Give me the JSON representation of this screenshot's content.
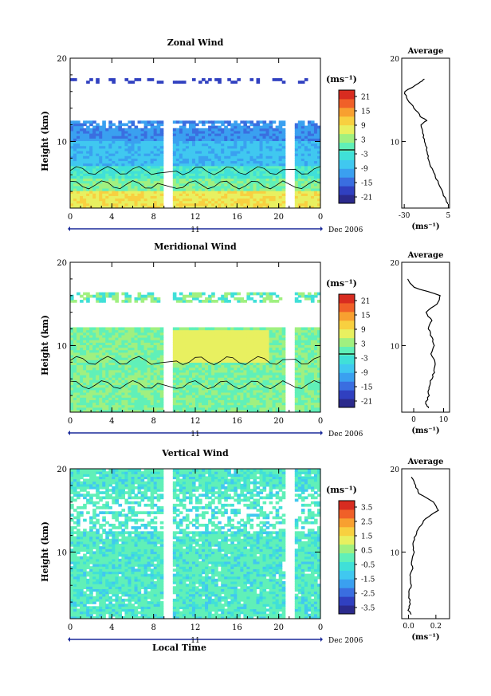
{
  "x_ticks": [
    "0",
    "4",
    "8",
    "12",
    "16",
    "20",
    "0"
  ],
  "date_tick": "11",
  "date_label": "Dec 2006",
  "height_ticks": [
    "20",
    "10"
  ],
  "ylabel": "Height (km)",
  "xlabel_bottom": "Local Time",
  "unit_label": "(ms⁻¹)",
  "avg_title": "Average",
  "avg_unit": "(ms⁻¹)",
  "colormap": [
    "#2b2a8c",
    "#3040c0",
    "#3a6ee0",
    "#3aa0f0",
    "#40c8f0",
    "#40e0d8",
    "#60f0b8",
    "#a0f080",
    "#e8f060",
    "#f8d040",
    "#f8a030",
    "#f06028",
    "#d82c20"
  ],
  "chart_data": [
    {
      "type": "heatmap",
      "title": "Zonal Wind",
      "xlabel": "",
      "ylabel": "Height (km)",
      "xlim": [
        0,
        24
      ],
      "ylim": [
        2,
        20
      ],
      "colorbar_ticks": [
        "21",
        "15",
        "9",
        "3",
        "-3",
        "-9",
        "-15",
        "-21"
      ],
      "colorbar_range": [
        -24,
        24
      ],
      "avg_x_ticks": [
        "-30",
        "5"
      ],
      "avg_xlim": [
        -32,
        6
      ],
      "avg_profile": {
        "height_km": [
          2.5,
          3,
          4,
          5,
          6,
          7,
          8,
          9,
          10,
          11,
          12,
          12.5,
          13,
          14,
          15,
          16,
          17,
          17.5
        ],
        "value": [
          5,
          3,
          0,
          -3,
          -6,
          -9,
          -11,
          -12,
          -14,
          -15,
          -17,
          -12,
          -17,
          -22,
          -27,
          -30,
          -18,
          -14
        ]
      }
    },
    {
      "type": "heatmap",
      "title": "Meridional Wind",
      "xlabel": "",
      "ylabel": "Height (km)",
      "xlim": [
        0,
        24
      ],
      "ylim": [
        2,
        20
      ],
      "colorbar_ticks": [
        "21",
        "15",
        "9",
        "3",
        "-3",
        "-9",
        "-15",
        "-21"
      ],
      "colorbar_range": [
        -24,
        24
      ],
      "avg_x_ticks": [
        "0",
        "10"
      ],
      "avg_xlim": [
        -4,
        12
      ],
      "avg_profile": {
        "height_km": [
          2.5,
          3,
          4,
          5,
          6,
          7,
          8,
          9,
          10,
          11,
          12,
          13,
          14,
          15,
          16,
          17,
          18
        ],
        "value": [
          5,
          4,
          5,
          5,
          6,
          7,
          7,
          6,
          7,
          6,
          5,
          6,
          4,
          8,
          9,
          0,
          -2
        ]
      }
    },
    {
      "type": "heatmap",
      "title": "Vertical Wind",
      "xlabel": "Local Time",
      "ylabel": "Height (km)",
      "xlim": [
        0,
        24
      ],
      "ylim": [
        2,
        20
      ],
      "colorbar_ticks": [
        "3.5",
        "2.5",
        "1.5",
        "0.5",
        "-0.5",
        "-1.5",
        "-2.5",
        "-3.5"
      ],
      "colorbar_range": [
        -4,
        4
      ],
      "avg_x_ticks": [
        "0.0",
        "0.2"
      ],
      "avg_xlim": [
        -0.05,
        0.3
      ],
      "avg_profile": {
        "height_km": [
          2.5,
          3,
          4,
          5,
          6,
          7,
          8,
          9,
          10,
          11,
          12,
          13,
          14,
          15,
          16,
          17,
          18,
          19
        ],
        "value": [
          0.02,
          0.0,
          0.01,
          0.0,
          0.02,
          0.01,
          0.03,
          0.02,
          0.04,
          0.03,
          0.05,
          0.08,
          0.12,
          0.22,
          0.18,
          0.08,
          0.05,
          0.02
        ]
      }
    }
  ]
}
